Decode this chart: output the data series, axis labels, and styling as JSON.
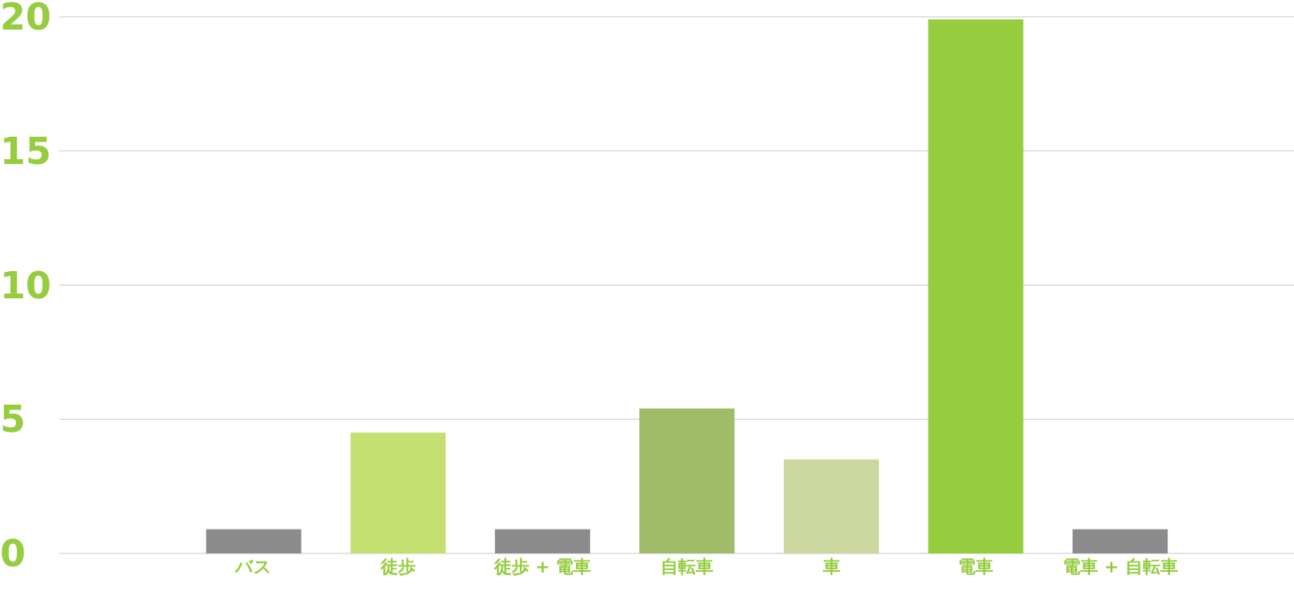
{
  "chart_data": {
    "type": "bar",
    "categories": [
      "バス",
      "徒歩",
      "徒歩 + 電車",
      "自転車",
      "車",
      "電車",
      "電車 + 自転車"
    ],
    "values": [
      0.9,
      4.5,
      0.9,
      5.4,
      3.5,
      19.9,
      0.9
    ],
    "colors": [
      "#8c8c8c",
      "#c3e070",
      "#8c8c8c",
      "#a0bc6b",
      "#ccd89f",
      "#95cd3f",
      "#8c8c8c"
    ],
    "ylim": [
      0,
      20
    ],
    "yticks": [
      0,
      5,
      10,
      15,
      20
    ],
    "grid": "y",
    "legend": false
  }
}
